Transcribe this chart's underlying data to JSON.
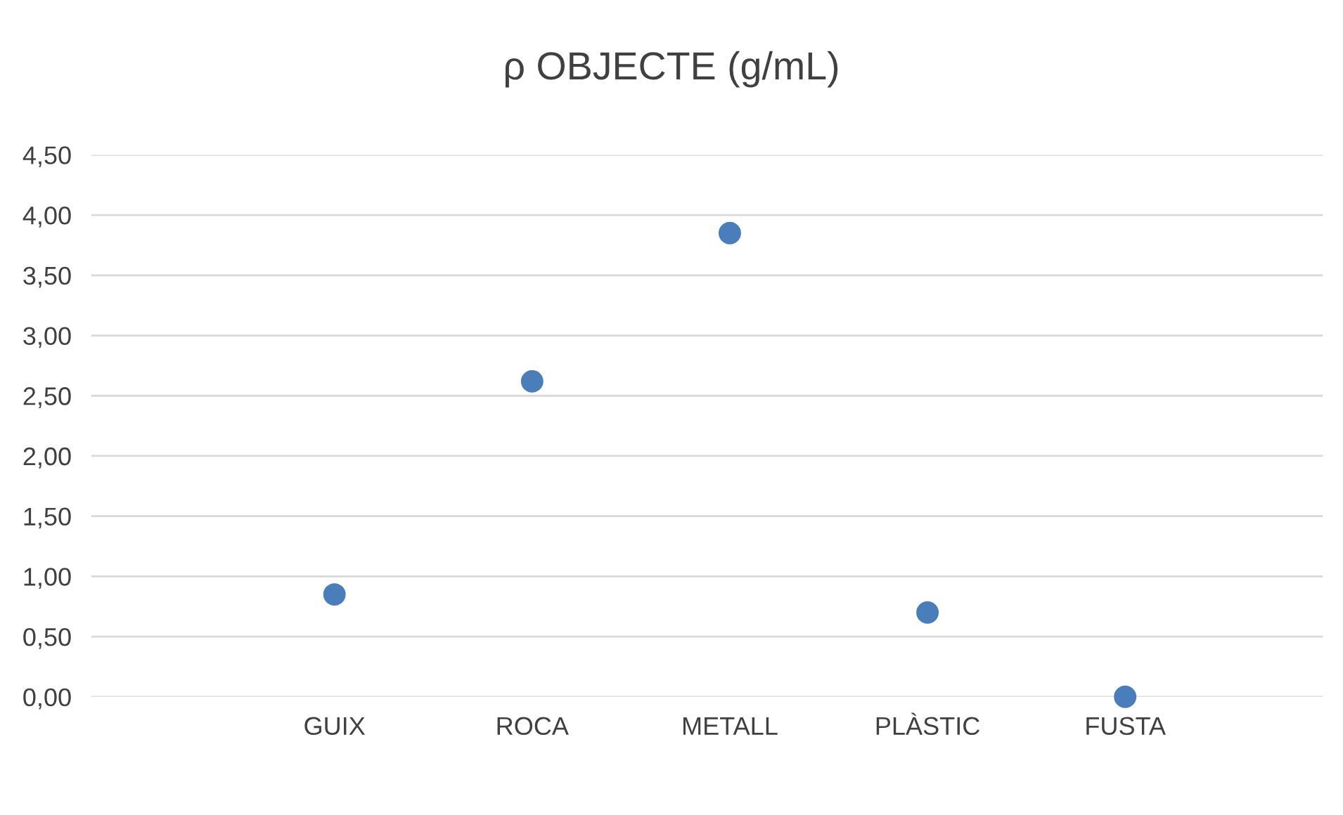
{
  "chart_data": {
    "type": "scatter",
    "title": "ρ OBJECTE (g/mL)",
    "categories": [
      "GUIX",
      "ROCA",
      "METALL",
      "PLÀSTIC",
      "FUSTA"
    ],
    "series": [
      {
        "color": "#4a7ebb",
        "values": [
          0.85,
          2.62,
          3.85,
          0.7,
          0.0
        ]
      }
    ],
    "ylim": [
      0,
      4.5
    ],
    "yticks": [
      {
        "value": 0,
        "label": "0,00"
      },
      {
        "value": 0.5,
        "label": "0,50"
      },
      {
        "value": 1,
        "label": "1,00"
      },
      {
        "value": 1.5,
        "label": "1,50"
      },
      {
        "value": 2,
        "label": "2,00"
      },
      {
        "value": 2.5,
        "label": "2,50"
      },
      {
        "value": 3,
        "label": "3,00"
      },
      {
        "value": 3.5,
        "label": "3,50"
      },
      {
        "value": 4,
        "label": "4,00"
      },
      {
        "value": 4.5,
        "label": "4,50"
      }
    ],
    "grid": "y",
    "marker": "circle"
  }
}
